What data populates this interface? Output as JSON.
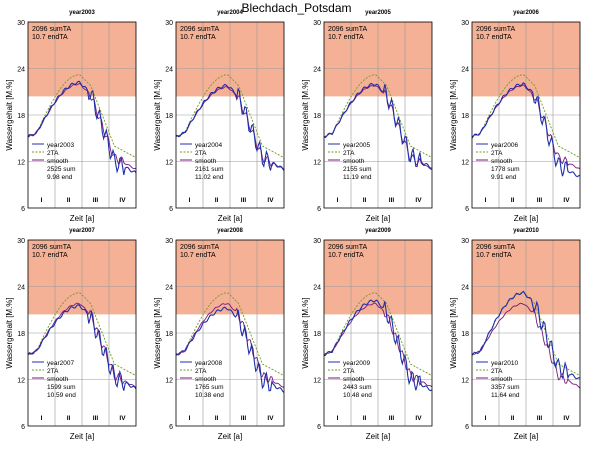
{
  "figure": {
    "title": "Blechdach_Potsdam"
  },
  "common": {
    "ylabel": "Wassergehalt [M.%]",
    "xlabel": "Zeit [a]",
    "yticks": [
      "6",
      "12",
      "18",
      "24",
      "30"
    ],
    "xticks": [
      "I",
      "II",
      "III",
      "IV"
    ],
    "ref_sum": "2096 sumTA",
    "ref_end": "10.7 endTA",
    "legend_2ta": "2TA",
    "legend_smooth": "smooth"
  },
  "colors": {
    "zone_fill": "#f4b196",
    "year_line": "#1f2fa8",
    "ta_line": "#6f9a1e",
    "smooth_line": "#7a1a7a",
    "grid": "#999999"
  },
  "chart_data": [
    {
      "type": "line",
      "title": "year2003",
      "ylim": [
        6,
        30
      ],
      "x": [
        "I",
        "II",
        "III",
        "IV"
      ],
      "xlabel": "Zeit [a]",
      "ylabel": "Wassergehalt [M.%]",
      "series": [
        {
          "name": "year2003",
          "peak": 22.2,
          "end": 10.5
        },
        {
          "name": "2TA",
          "peak": 23.2,
          "end": 12.5
        },
        {
          "name": "smooth",
          "peak": 22.0,
          "end": 11.0
        }
      ],
      "sum": "2525 sum",
      "end": "9.98 end"
    },
    {
      "type": "line",
      "title": "year2004",
      "ylim": [
        6,
        30
      ],
      "x": [
        "I",
        "II",
        "III",
        "IV"
      ],
      "xlabel": "Zeit [a]",
      "ylabel": "Wassergehalt [M.%]",
      "series": [
        {
          "name": "year2004",
          "peak": 21.8,
          "end": 11.0
        },
        {
          "name": "2TA",
          "peak": 23.2,
          "end": 12.5
        },
        {
          "name": "smooth",
          "peak": 21.6,
          "end": 11.0
        }
      ],
      "sum": "2161 sum",
      "end": "11.02 end"
    },
    {
      "type": "line",
      "title": "year2005",
      "ylim": [
        6,
        30
      ],
      "x": [
        "I",
        "II",
        "III",
        "IV"
      ],
      "xlabel": "Zeit [a]",
      "ylabel": "Wassergehalt [M.%]",
      "series": [
        {
          "name": "year2005",
          "peak": 22.0,
          "end": 11.2
        },
        {
          "name": "2TA",
          "peak": 23.2,
          "end": 12.5
        },
        {
          "name": "smooth",
          "peak": 21.8,
          "end": 11.0
        }
      ],
      "sum": "2155 sum",
      "end": "11.19 end"
    },
    {
      "type": "line",
      "title": "year2006",
      "ylim": [
        6,
        30
      ],
      "x": [
        "I",
        "II",
        "III",
        "IV"
      ],
      "xlabel": "Zeit [a]",
      "ylabel": "Wassergehalt [M.%]",
      "series": [
        {
          "name": "year2006",
          "peak": 22.0,
          "end": 10.0
        },
        {
          "name": "2TA",
          "peak": 23.2,
          "end": 12.5
        },
        {
          "name": "smooth",
          "peak": 21.8,
          "end": 11.0
        }
      ],
      "sum": "1778 sum",
      "end": "9.91 end"
    },
    {
      "type": "line",
      "title": "year2007",
      "ylim": [
        6,
        30
      ],
      "x": [
        "I",
        "II",
        "III",
        "IV"
      ],
      "xlabel": "Zeit [a]",
      "ylabel": "Wassergehalt [M.%]",
      "series": [
        {
          "name": "year2007",
          "peak": 21.5,
          "end": 10.8
        },
        {
          "name": "2TA",
          "peak": 23.2,
          "end": 12.5
        },
        {
          "name": "smooth",
          "peak": 21.8,
          "end": 11.0
        }
      ],
      "sum": "1599 sum",
      "end": "10.59 end"
    },
    {
      "type": "line",
      "title": "year2008",
      "ylim": [
        6,
        30
      ],
      "x": [
        "I",
        "II",
        "III",
        "IV"
      ],
      "xlabel": "Zeit [a]",
      "ylabel": "Wassergehalt [M.%]",
      "series": [
        {
          "name": "year2008",
          "peak": 21.2,
          "end": 10.5
        },
        {
          "name": "2TA",
          "peak": 23.2,
          "end": 12.5
        },
        {
          "name": "smooth",
          "peak": 21.8,
          "end": 11.0
        }
      ],
      "sum": "1765 sum",
      "end": "10.38 end"
    },
    {
      "type": "line",
      "title": "year2009",
      "ylim": [
        6,
        30
      ],
      "x": [
        "I",
        "II",
        "III",
        "IV"
      ],
      "xlabel": "Zeit [a]",
      "ylabel": "Wassergehalt [M.%]",
      "series": [
        {
          "name": "year2009",
          "peak": 22.2,
          "end": 10.6
        },
        {
          "name": "2TA",
          "peak": 23.2,
          "end": 12.5
        },
        {
          "name": "smooth",
          "peak": 21.8,
          "end": 11.0
        }
      ],
      "sum": "2443 sum",
      "end": "10.48 end"
    },
    {
      "type": "line",
      "title": "year2010",
      "ylim": [
        6,
        30
      ],
      "x": [
        "I",
        "II",
        "III",
        "IV"
      ],
      "xlabel": "Zeit [a]",
      "ylabel": "Wassergehalt [M.%]",
      "series": [
        {
          "name": "year2010",
          "peak": 23.2,
          "end": 12.0
        },
        {
          "name": "2TA",
          "peak": 23.2,
          "end": 12.5
        },
        {
          "name": "smooth",
          "peak": 21.8,
          "end": 11.0
        }
      ],
      "sum": "3357 sum",
      "end": "11.64 end"
    }
  ]
}
